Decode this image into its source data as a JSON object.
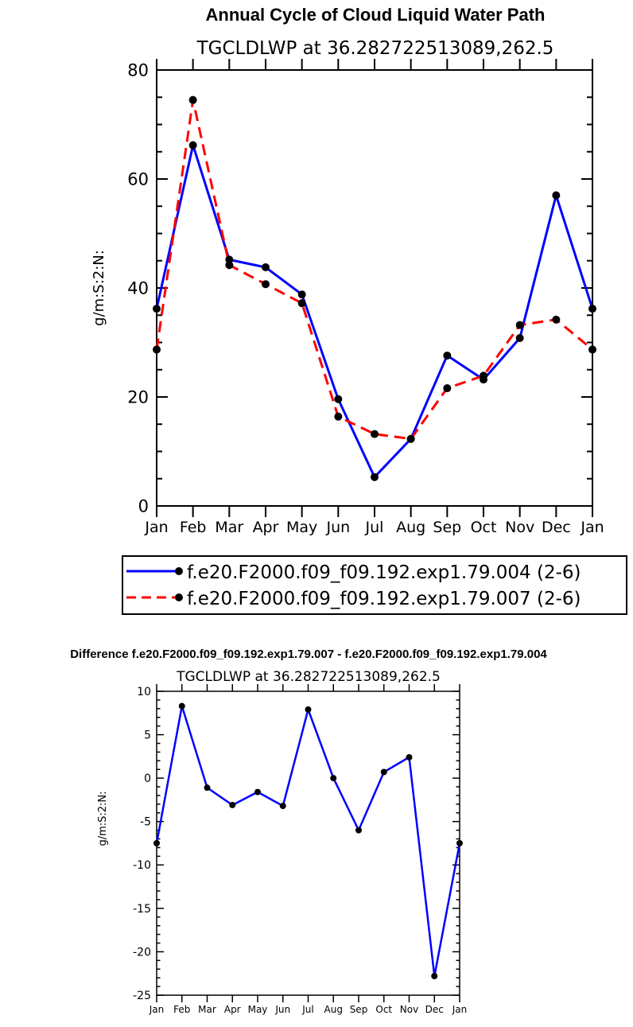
{
  "chart_data": [
    {
      "type": "line",
      "title": "Annual Cycle of Cloud Liquid Water Path",
      "subtitle": "TGCLDLWP at 36.282722513089,262.5",
      "ylabel": "g/m:S:2:N:",
      "xlabel": "",
      "ylim": [
        0,
        80
      ],
      "yticks": [
        0,
        20,
        40,
        60,
        80
      ],
      "yminor_step": 5,
      "categories": [
        "Jan",
        "Feb",
        "Mar",
        "Apr",
        "May",
        "Jun",
        "Jul",
        "Aug",
        "Sep",
        "Oct",
        "Nov",
        "Dec",
        "Jan"
      ],
      "series": [
        {
          "name": "f.e20.F2000.f09_f09.192.exp1.79.004 (2-6)",
          "color": "#0000ff",
          "dash": "solid",
          "values": [
            36.2,
            66.2,
            45.2,
            43.8,
            38.8,
            19.6,
            5.3,
            12.3,
            27.6,
            23.2,
            30.8,
            57.0,
            36.2
          ]
        },
        {
          "name": "f.e20.F2000.f09_f09.192.exp1.79.007 (2-6)",
          "color": "#ff0000",
          "dash": "dashed",
          "values": [
            28.7,
            74.5,
            44.2,
            40.7,
            37.2,
            16.4,
            13.2,
            12.3,
            21.6,
            23.9,
            33.2,
            34.2,
            28.7
          ]
        }
      ]
    },
    {
      "type": "line",
      "title": "Difference f.e20.F2000.f09_f09.192.exp1.79.007 - f.e20.F2000.f09_f09.192.exp1.79.004",
      "subtitle": "TGCLDLWP at 36.282722513089,262.5",
      "ylabel": "g/m:S:2:N:",
      "xlabel": "",
      "ylim": [
        -25,
        10
      ],
      "yticks": [
        -25,
        -20,
        -15,
        -10,
        -5,
        0,
        5,
        10
      ],
      "yminor_step": 1,
      "categories": [
        "Jan",
        "Feb",
        "Mar",
        "Apr",
        "May",
        "Jun",
        "Jul",
        "Aug",
        "Sep",
        "Oct",
        "Nov",
        "Dec",
        "Jan"
      ],
      "series": [
        {
          "name": "difference",
          "color": "#0000ff",
          "dash": "solid",
          "values": [
            -7.5,
            8.3,
            -1.1,
            -3.1,
            -1.6,
            -3.2,
            7.9,
            -0.0,
            -6.0,
            0.7,
            2.4,
            -22.8,
            -7.5
          ]
        }
      ]
    }
  ]
}
